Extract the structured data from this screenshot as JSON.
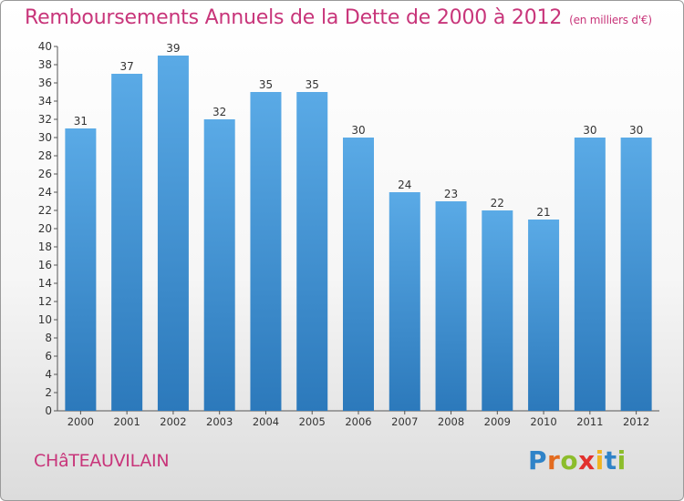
{
  "chart_data": {
    "type": "bar",
    "title": "Remboursements Annuels de la Dette de 2000 à 2012",
    "unit_note": "(en milliers d'€)",
    "categories": [
      "2000",
      "2001",
      "2002",
      "2003",
      "2004",
      "2005",
      "2006",
      "2007",
      "2008",
      "2009",
      "2010",
      "2011",
      "2012"
    ],
    "values": [
      31,
      37,
      39,
      32,
      35,
      35,
      30,
      24,
      23,
      22,
      21,
      30,
      30
    ],
    "ylim": [
      0,
      40
    ],
    "ytick_step": 2,
    "grid": false,
    "bar_color_top": "#5aaae6",
    "bar_color_bottom": "#2c79bb"
  },
  "footer": {
    "city": "CHâTEAUVILAIN",
    "logo_letters": [
      "P",
      "r",
      "o",
      "x",
      "i",
      "t",
      "i"
    ],
    "logo_colors": [
      "#2f83c8",
      "#e36b1f",
      "#8cbd2b",
      "#e2312d",
      "#f0b422",
      "#2f83c8",
      "#8cbd2b"
    ]
  },
  "colors": {
    "accent": "#c8357a"
  }
}
